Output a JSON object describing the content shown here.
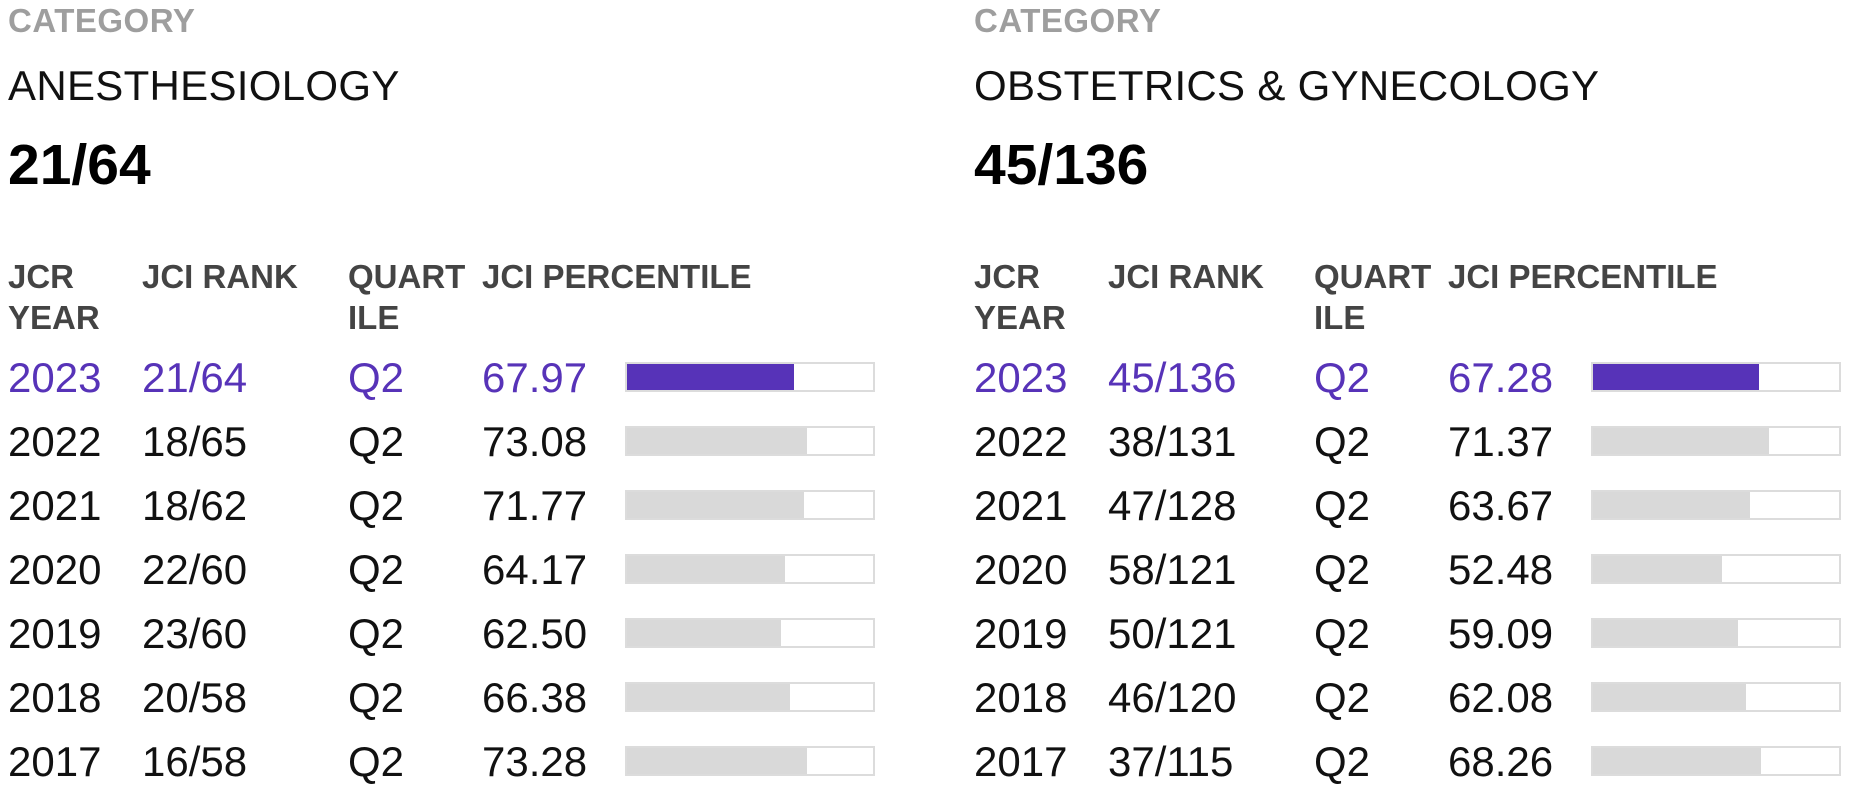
{
  "panels": [
    {
      "category_label": "CATEGORY",
      "category_name": "ANESTHESIOLOGY",
      "category_rank": "21/64",
      "headers": {
        "year": "JCR YEAR",
        "rank": "JCI RANK",
        "quartile": "QUARTILE",
        "percentile": "JCI PERCENTILE"
      },
      "rows": [
        {
          "year": "2023",
          "rank": "21/64",
          "quartile": "Q2",
          "percentile": "67.97"
        },
        {
          "year": "2022",
          "rank": "18/65",
          "quartile": "Q2",
          "percentile": "73.08"
        },
        {
          "year": "2021",
          "rank": "18/62",
          "quartile": "Q2",
          "percentile": "71.77"
        },
        {
          "year": "2020",
          "rank": "22/60",
          "quartile": "Q2",
          "percentile": "64.17"
        },
        {
          "year": "2019",
          "rank": "23/60",
          "quartile": "Q2",
          "percentile": "62.50"
        },
        {
          "year": "2018",
          "rank": "20/58",
          "quartile": "Q2",
          "percentile": "66.38"
        },
        {
          "year": "2017",
          "rank": "16/58",
          "quartile": "Q2",
          "percentile": "73.28"
        }
      ]
    },
    {
      "category_label": "CATEGORY",
      "category_name": "OBSTETRICS & GYNECOLOGY",
      "category_rank": "45/136",
      "headers": {
        "year": "JCR YEAR",
        "rank": "JCI RANK",
        "quartile": "QUARTILE",
        "percentile": "JCI PERCENTILE"
      },
      "rows": [
        {
          "year": "2023",
          "rank": "45/136",
          "quartile": "Q2",
          "percentile": "67.28"
        },
        {
          "year": "2022",
          "rank": "38/131",
          "quartile": "Q2",
          "percentile": "71.37"
        },
        {
          "year": "2021",
          "rank": "47/128",
          "quartile": "Q2",
          "percentile": "63.67"
        },
        {
          "year": "2020",
          "rank": "58/121",
          "quartile": "Q2",
          "percentile": "52.48"
        },
        {
          "year": "2019",
          "rank": "50/121",
          "quartile": "Q2",
          "percentile": "59.09"
        },
        {
          "year": "2018",
          "rank": "46/120",
          "quartile": "Q2",
          "percentile": "62.08"
        },
        {
          "year": "2017",
          "rank": "37/115",
          "quartile": "Q2",
          "percentile": "68.26"
        }
      ]
    }
  ],
  "colors": {
    "highlight": "#5733b8",
    "bar_fill": "#d9d9d9",
    "bar_border": "#dcdcdc",
    "label_gray": "#9e9e9e"
  }
}
